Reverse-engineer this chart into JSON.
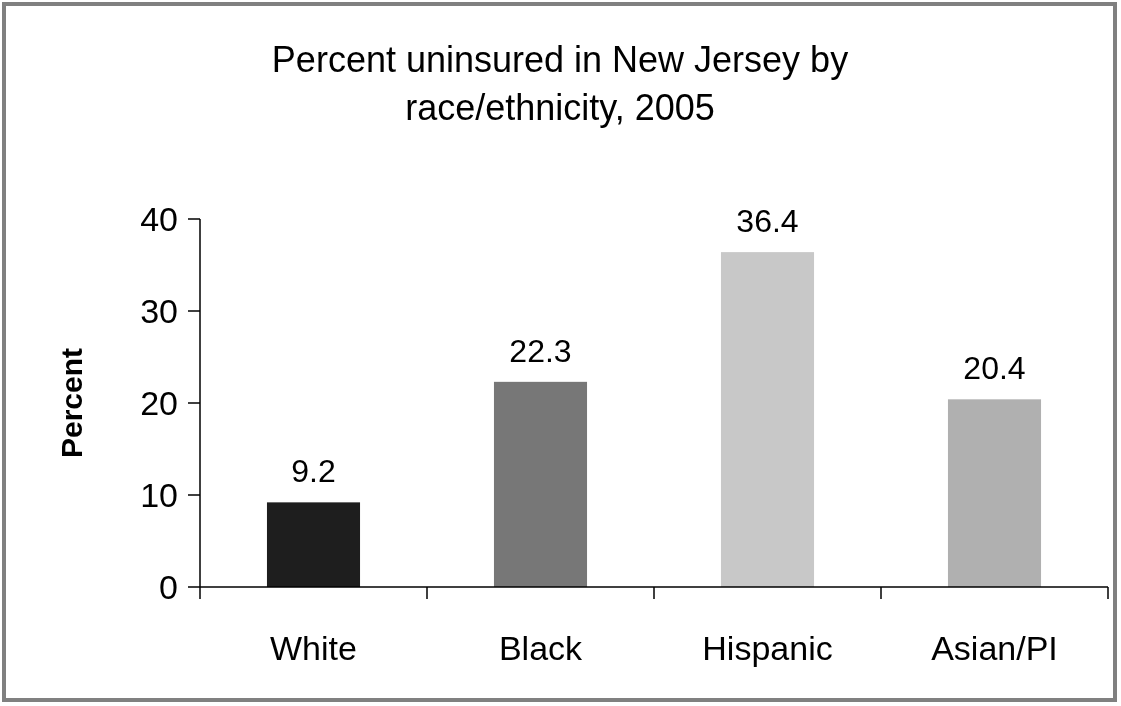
{
  "chart_data": {
    "type": "bar",
    "title": "Percent uninsured in New Jersey by race/ethnicity, 2005",
    "ylabel": "Percent",
    "categories": [
      "White",
      "Black",
      "Hispanic",
      "Asian/PI"
    ],
    "values": [
      9.2,
      22.3,
      36.4,
      20.4
    ],
    "colors": [
      "#1e1e1e",
      "#777777",
      "#c8c8c8",
      "#b0b0b0"
    ],
    "ylim": [
      0,
      40
    ],
    "yticks": [
      0,
      10,
      20,
      30,
      40
    ],
    "data_labels": true
  }
}
